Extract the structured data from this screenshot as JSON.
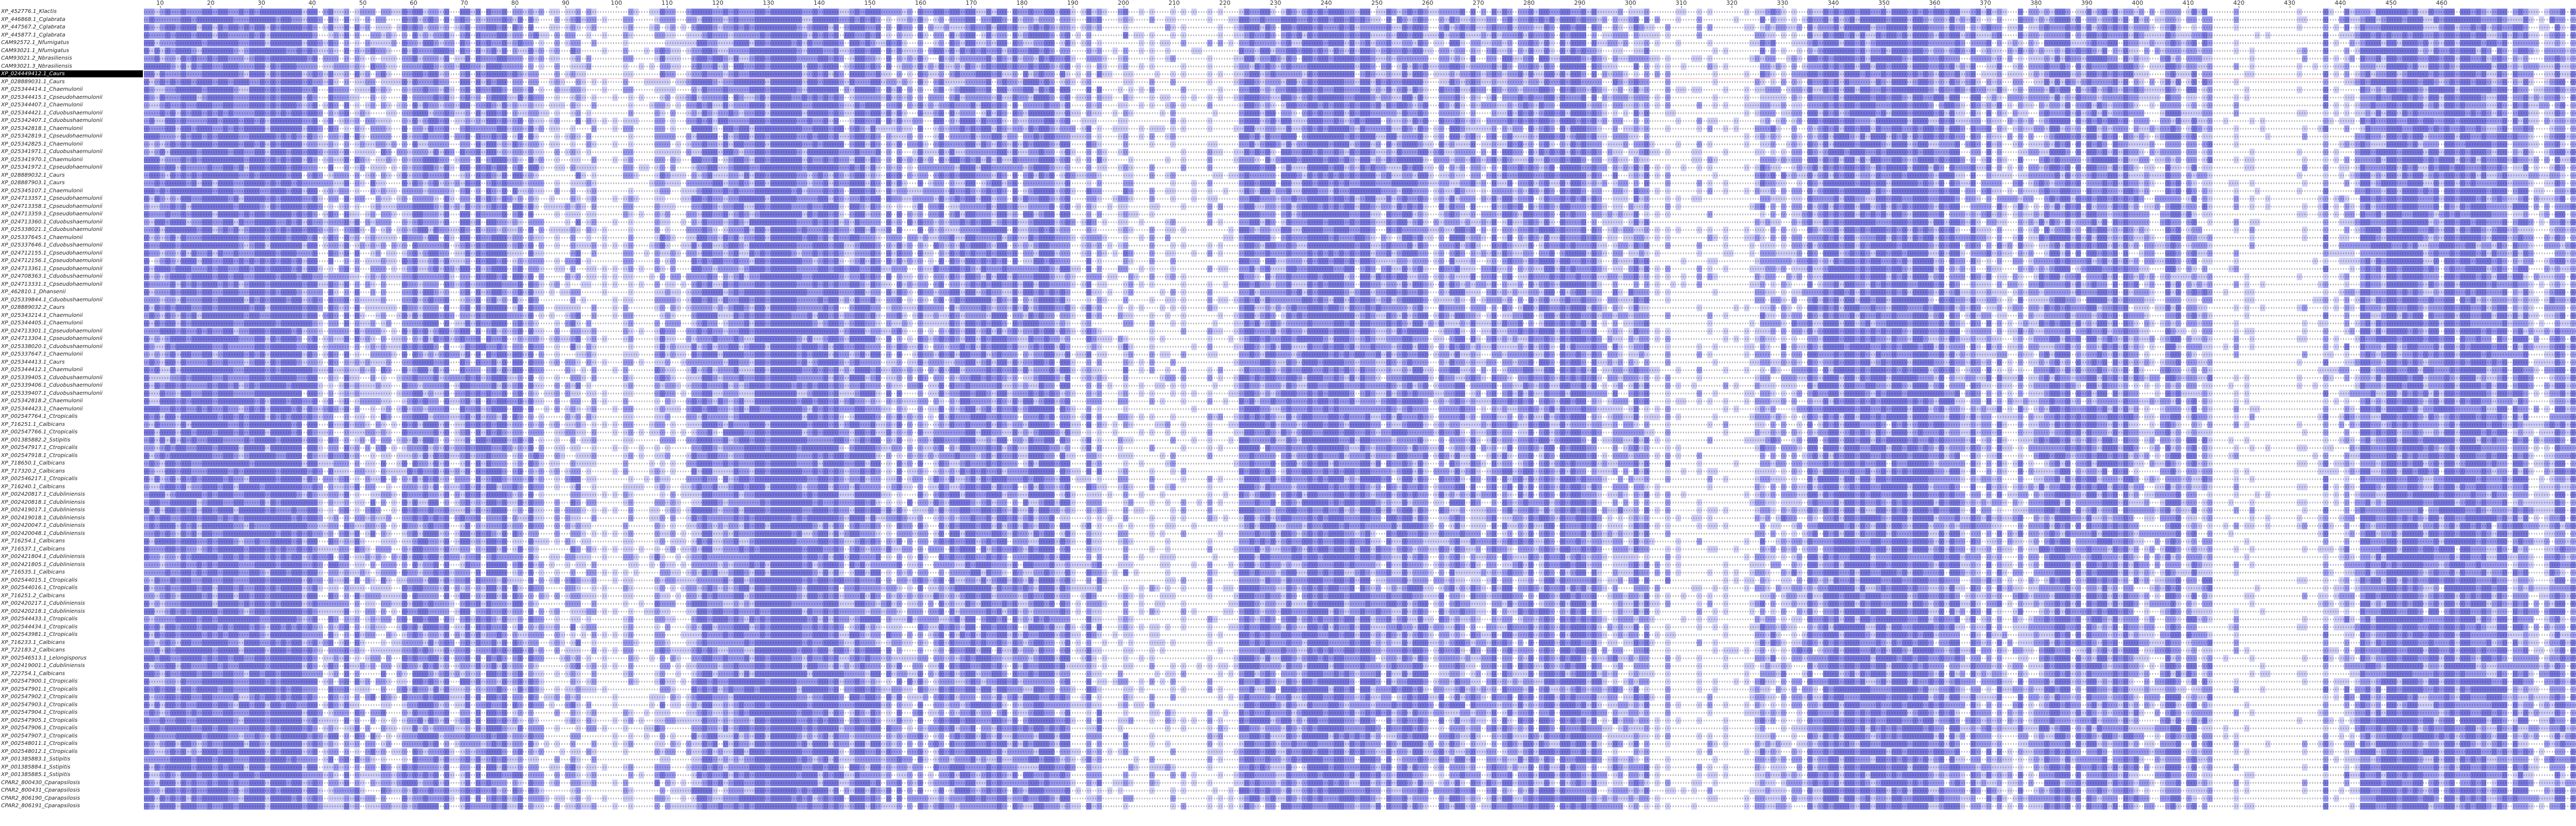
{
  "alignment": {
    "selected_row": 8,
    "ruler_labels": [
      "10",
      "20",
      "30",
      "40",
      "50",
      "60",
      "70",
      "80",
      "90",
      "100",
      "110",
      "120",
      "130",
      "140",
      "150",
      "160",
      "170",
      "180",
      "190",
      "200",
      "210",
      "220",
      "230",
      "240",
      "250",
      "260",
      "270",
      "280",
      "290",
      "300",
      "310",
      "320",
      "330",
      "340",
      "350",
      "360",
      "370",
      "380",
      "390",
      "400",
      "410",
      "420",
      "430",
      "440",
      "450",
      "460"
    ],
    "colors": {
      "identity_high": "#7777dd",
      "identity_mid": "#9999ee",
      "identity_low": "#ccccf5",
      "background": "#ffffff",
      "selection_bar": "#000000"
    },
    "sequences": [
      "XP_452776.1_Klactis",
      "XP_446868.1_Cglabrata",
      "XP_447567.2_Cglabrata",
      "XP_445877.1_Cglabrata",
      "CAM92572.1_Nfumigatus",
      "CAM93021.1_Nfumigatus",
      "CAM93021.2_Nbrasiliensis",
      "CAM93021.3_Nbrasiliensis",
      "XP_024449412.1_Caurs",
      "XP_028889031.1_Caurs",
      "XP_025344414.1_Chaemulonii",
      "XP_025344415.1_Cpseudohaemulonii",
      "XP_025344407.1_Chaemulonii",
      "XP_025344421.1_Cduobushaemulonii",
      "XP_025342407.1_Cduobushaemulonii",
      "XP_025342818.1_Chaemulonii",
      "XP_025342819.1_Cpseudohaemulonii",
      "XP_025342825.1_Chaemulonii",
      "XP_025341971.1_Cduobushaemulonii",
      "XP_025341970.1_Chaemulonii",
      "XP_025341972.1_Cpseudohaemulonii",
      "XP_028889032.1_Caurs",
      "XP_028887903.1_Caurs",
      "XP_025345107.1_Chaemulonii",
      "XP_024713357.1_Cpseudohaemulonii",
      "XP_024713358.1_Cpseudohaemulonii",
      "XP_024713359.1_Cpseudohaemulonii",
      "XP_024713360.1_Cduobushaemulonii",
      "XP_025338021.1_Cduobushaemulonii",
      "XP_025337645.1_Chaemulonii",
      "XP_025337646.1_Cduobushaemulonii",
      "XP_024712155.1_Cpseudohaemulonii",
      "XP_024712156.1_Cpseudohaemulonii",
      "XP_024713361.1_Cpseudohaemulonii",
      "XP_024708363.1_Cduobushaemulonii",
      "XP_024713331.1_Cpseudohaemulonii",
      "XP_462810.1_Dhansenii",
      "XP_025339844.1_Cduobushaemulonii",
      "XP_028889032.2_Caurs",
      "XP_025343214.1_Chaemulonii",
      "XP_025344405.1_Chaemulonii",
      "XP_024713301.1_Cpseudohaemulonii",
      "XP_024713304.1_Cpseudohaemulonii",
      "XP_025338020.1_Cduobushaemulonii",
      "XP_025337647.1_Chaemulonii",
      "XP_025344413.1_Caurs",
      "XP_025344412.1_Chaemulonii",
      "XP_025339405.1_Cduobushaemulonii",
      "XP_025339406.1_Cduobushaemulonii",
      "XP_025339407.1_Cduobushaemulonii",
      "XP_025342818.2_Chaemulonii",
      "XP_025344423.1_Chaemulonii",
      "XP_002547764.1_Ctropicalis",
      "XP_716251.1_Calbicans",
      "XP_002547766.1_Ctropicalis",
      "XP_001385882.2_Sstipitis",
      "XP_002547917.1_Ctropicalis",
      "XP_002547918.1_Ctropicalis",
      "XP_718650.1_Calbicans",
      "XP_717320.2_Calbicans",
      "XP_002546217.1_Ctropicalis",
      "XP_716240.1_Calbicans",
      "XP_002420817.1_Cdubliniensis",
      "XP_002420818.1_Cdubliniensis",
      "XP_002419017.1_Cdubliniensis",
      "XP_002419018.1_Cdubliniensis",
      "XP_002420047.1_Cdubliniensis",
      "XP_002420048.1_Cdubliniensis",
      "XP_716254.1_Calbicans",
      "XP_716537.1_Calbicans",
      "XP_002421804.1_Cdubliniensis",
      "XP_002421805.1_Cdubliniensis",
      "XP_716535.1_Calbicans",
      "XP_002544015.1_Ctropicalis",
      "XP_002544016.1_Ctropicalis",
      "XP_716251.2_Calbicans",
      "XP_002420217.1_Cdubliniensis",
      "XP_002420218.1_Cdubliniensis",
      "XP_002544433.1_Ctropicalis",
      "XP_002544434.1_Ctropicalis",
      "XP_002543981.1_Ctropicalis",
      "XP_716233.1_Calbicans",
      "XP_722183.2_Calbicans",
      "XP_002546513.1_Lelongisporus",
      "XP_002419001.1_Cdubliniensis",
      "XP_722754.1_Calbicans",
      "XP_002547900.1_Ctropicalis",
      "XP_002547901.1_Ctropicalis",
      "XP_002547902.1_Ctropicalis",
      "XP_002547903.1_Ctropicalis",
      "XP_002547904.1_Ctropicalis",
      "XP_002547905.1_Ctropicalis",
      "XP_002547906.1_Ctropicalis",
      "XP_002547907.1_Ctropicalis",
      "XP_002548011.1_Ctropicalis",
      "XP_002548012.1_Ctropicalis",
      "XP_001385883.1_Sstipitis",
      "XP_001385884.1_Sstipitis",
      "XP_001385885.1_Sstipitis",
      "CPAR2_800430_Cparapsilosis",
      "CPAR2_800431_Cparapsilosis",
      "CPAR2_806190_Cparapsilosis",
      "CPAR2_806191_Cparapsilosis"
    ]
  }
}
